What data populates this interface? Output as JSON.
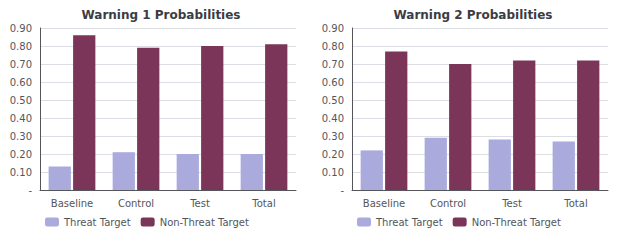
{
  "chart_data": [
    {
      "type": "bar",
      "title": "Warning 1 Probabilities",
      "categories": [
        "Baseline",
        "Control",
        "Test",
        "Total"
      ],
      "series": [
        {
          "name": "Threat Target",
          "color": "#aaaadd",
          "values": [
            0.13,
            0.21,
            0.2,
            0.2
          ]
        },
        {
          "name": "Non-Threat Target",
          "color": "#7b3558",
          "values": [
            0.86,
            0.79,
            0.8,
            0.81
          ]
        }
      ],
      "ylim": [
        0,
        0.9
      ],
      "yticks": [
        {
          "value": 0.0,
          "label": "-"
        },
        {
          "value": 0.1,
          "label": "0.10"
        },
        {
          "value": 0.2,
          "label": "0.20"
        },
        {
          "value": 0.3,
          "label": "0.30"
        },
        {
          "value": 0.4,
          "label": "0.40"
        },
        {
          "value": 0.5,
          "label": "0.50"
        },
        {
          "value": 0.6,
          "label": "0.60"
        },
        {
          "value": 0.7,
          "label": "0.70"
        },
        {
          "value": 0.8,
          "label": "0.80"
        },
        {
          "value": 0.9,
          "label": "0.90"
        }
      ],
      "grid": true,
      "legend": "bottom"
    },
    {
      "type": "bar",
      "title": "Warning 2 Probabilities",
      "categories": [
        "Baseline",
        "Control",
        "Test",
        "Total"
      ],
      "series": [
        {
          "name": "Threat Target",
          "color": "#aaaadd",
          "values": [
            0.22,
            0.29,
            0.28,
            0.27
          ]
        },
        {
          "name": "Non-Threat Target",
          "color": "#7b3558",
          "values": [
            0.77,
            0.7,
            0.72,
            0.72
          ]
        }
      ],
      "ylim": [
        0,
        0.9
      ],
      "yticks": [
        {
          "value": 0.0,
          "label": "-"
        },
        {
          "value": 0.1,
          "label": "0.10"
        },
        {
          "value": 0.2,
          "label": "0.20"
        },
        {
          "value": 0.3,
          "label": "0.30"
        },
        {
          "value": 0.4,
          "label": "0.40"
        },
        {
          "value": 0.5,
          "label": "0.50"
        },
        {
          "value": 0.6,
          "label": "0.60"
        },
        {
          "value": 0.7,
          "label": "0.70"
        },
        {
          "value": 0.8,
          "label": "0.80"
        },
        {
          "value": 0.9,
          "label": "0.90"
        }
      ],
      "grid": true,
      "legend": "bottom"
    }
  ]
}
